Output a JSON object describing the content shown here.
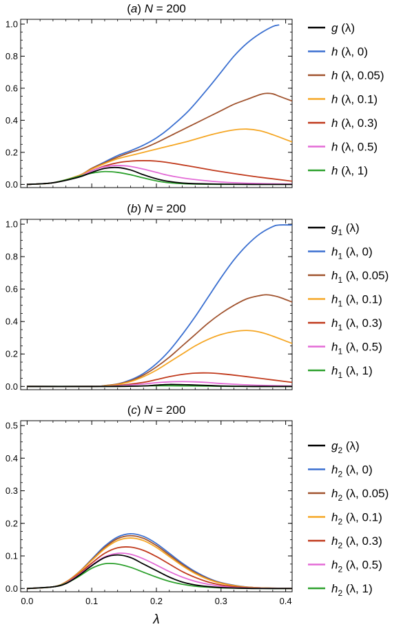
{
  "chart_data": [
    {
      "type": "line",
      "title": "(a) N = 200",
      "xlabel": "",
      "ylabel": "",
      "xlim": [
        -0.01,
        0.41
      ],
      "ylim": [
        -0.02,
        1.03
      ],
      "yticks": [
        "0.0",
        "0.2",
        "0.4",
        "0.6",
        "0.8",
        "1.0"
      ],
      "ytick_values": [
        0,
        0.2,
        0.4,
        0.6,
        0.8,
        1.0
      ],
      "legend_position": "right",
      "grid": false,
      "series": [
        {
          "name": "g (λ)",
          "color": "#000000",
          "x": [
            0,
            0.04,
            0.08,
            0.1,
            0.12,
            0.14,
            0.16,
            0.18,
            0.2,
            0.22,
            0.25,
            0.3,
            0.35,
            0.41
          ],
          "y": [
            0,
            0.01,
            0.045,
            0.075,
            0.1,
            0.105,
            0.09,
            0.06,
            0.035,
            0.018,
            0.006,
            0.002,
            0.0,
            0.0
          ]
        },
        {
          "name": "h (λ, 0)",
          "color": "#3a6fd0",
          "x": [
            0,
            0.04,
            0.08,
            0.1,
            0.12,
            0.14,
            0.16,
            0.18,
            0.2,
            0.22,
            0.25,
            0.28,
            0.3,
            0.32,
            0.34,
            0.36,
            0.38,
            0.39
          ],
          "y": [
            0,
            0.01,
            0.055,
            0.1,
            0.14,
            0.18,
            0.21,
            0.245,
            0.29,
            0.35,
            0.46,
            0.6,
            0.7,
            0.8,
            0.88,
            0.94,
            0.985,
            0.995
          ]
        },
        {
          "name": "h (λ, 0.05)",
          "color": "#a0522d",
          "x": [
            0,
            0.04,
            0.08,
            0.1,
            0.12,
            0.14,
            0.16,
            0.18,
            0.2,
            0.22,
            0.25,
            0.28,
            0.3,
            0.32,
            0.34,
            0.36,
            0.37,
            0.38,
            0.39,
            0.41
          ],
          "y": [
            0,
            0.01,
            0.055,
            0.1,
            0.135,
            0.17,
            0.2,
            0.225,
            0.26,
            0.3,
            0.36,
            0.42,
            0.46,
            0.5,
            0.53,
            0.56,
            0.568,
            0.565,
            0.55,
            0.52
          ]
        },
        {
          "name": "h (λ, 0.1)",
          "color": "#f5a623",
          "x": [
            0,
            0.04,
            0.08,
            0.1,
            0.12,
            0.14,
            0.16,
            0.18,
            0.2,
            0.22,
            0.25,
            0.28,
            0.3,
            0.32,
            0.34,
            0.36,
            0.38,
            0.4,
            0.41
          ],
          "y": [
            0,
            0.01,
            0.055,
            0.095,
            0.13,
            0.16,
            0.18,
            0.2,
            0.22,
            0.24,
            0.27,
            0.305,
            0.325,
            0.34,
            0.345,
            0.335,
            0.31,
            0.28,
            0.265
          ]
        },
        {
          "name": "h (λ, 0.3)",
          "color": "#c0391b",
          "x": [
            0,
            0.04,
            0.08,
            0.1,
            0.12,
            0.14,
            0.16,
            0.18,
            0.2,
            0.22,
            0.25,
            0.3,
            0.35,
            0.41
          ],
          "y": [
            0,
            0.01,
            0.05,
            0.085,
            0.115,
            0.135,
            0.145,
            0.148,
            0.145,
            0.135,
            0.115,
            0.08,
            0.05,
            0.02
          ]
        },
        {
          "name": "h (λ, 0.5)",
          "color": "#e36ad6",
          "x": [
            0,
            0.04,
            0.08,
            0.1,
            0.12,
            0.14,
            0.16,
            0.18,
            0.2,
            0.22,
            0.25,
            0.3,
            0.35,
            0.41
          ],
          "y": [
            0,
            0.01,
            0.05,
            0.085,
            0.11,
            0.118,
            0.112,
            0.095,
            0.075,
            0.055,
            0.035,
            0.015,
            0.006,
            0.002
          ]
        },
        {
          "name": "h (λ, 1)",
          "color": "#2ca02c",
          "x": [
            0,
            0.04,
            0.08,
            0.1,
            0.12,
            0.14,
            0.16,
            0.18,
            0.2,
            0.22,
            0.25,
            0.3,
            0.35,
            0.41
          ],
          "y": [
            0,
            0.01,
            0.05,
            0.07,
            0.08,
            0.075,
            0.06,
            0.04,
            0.022,
            0.01,
            0.003,
            0.0,
            0.0,
            0.0
          ]
        }
      ]
    },
    {
      "type": "line",
      "title": "(b) N = 200",
      "xlabel": "",
      "ylabel": "",
      "xlim": [
        -0.01,
        0.41
      ],
      "ylim": [
        -0.02,
        1.03
      ],
      "yticks": [
        "0.0",
        "0.2",
        "0.4",
        "0.6",
        "0.8",
        "1.0"
      ],
      "ytick_values": [
        0,
        0.2,
        0.4,
        0.6,
        0.8,
        1.0
      ],
      "legend_position": "right",
      "grid": false,
      "series": [
        {
          "name": "g1 (λ)",
          "color": "#000000",
          "x": [
            0,
            0.1,
            0.14,
            0.18,
            0.2,
            0.22,
            0.25,
            0.28,
            0.3,
            0.35,
            0.41
          ],
          "y": [
            0,
            0,
            0.0,
            0.003,
            0.008,
            0.012,
            0.01,
            0.006,
            0.003,
            0.0,
            0.0
          ]
        },
        {
          "name": "h1 (λ, 0)",
          "color": "#3a6fd0",
          "x": [
            0,
            0.1,
            0.12,
            0.14,
            0.16,
            0.18,
            0.2,
            0.22,
            0.24,
            0.26,
            0.28,
            0.3,
            0.32,
            0.34,
            0.36,
            0.38,
            0.39,
            0.41
          ],
          "y": [
            0,
            0,
            0.005,
            0.015,
            0.04,
            0.08,
            0.14,
            0.22,
            0.32,
            0.43,
            0.55,
            0.67,
            0.78,
            0.87,
            0.94,
            0.985,
            0.995,
            0.995
          ]
        },
        {
          "name": "h1 (λ, 0.05)",
          "color": "#a0522d",
          "x": [
            0,
            0.1,
            0.12,
            0.14,
            0.16,
            0.18,
            0.2,
            0.22,
            0.24,
            0.26,
            0.28,
            0.3,
            0.32,
            0.34,
            0.36,
            0.37,
            0.38,
            0.39,
            0.41
          ],
          "y": [
            0,
            0,
            0.005,
            0.015,
            0.035,
            0.07,
            0.12,
            0.18,
            0.25,
            0.32,
            0.39,
            0.45,
            0.5,
            0.54,
            0.56,
            0.565,
            0.56,
            0.55,
            0.52
          ]
        },
        {
          "name": "h1 (λ, 0.1)",
          "color": "#f5a623",
          "x": [
            0,
            0.1,
            0.12,
            0.14,
            0.16,
            0.18,
            0.2,
            0.22,
            0.24,
            0.26,
            0.28,
            0.3,
            0.32,
            0.34,
            0.36,
            0.38,
            0.4,
            0.41
          ],
          "y": [
            0,
            0,
            0.004,
            0.012,
            0.03,
            0.06,
            0.1,
            0.15,
            0.2,
            0.25,
            0.29,
            0.32,
            0.338,
            0.345,
            0.335,
            0.31,
            0.28,
            0.265
          ]
        },
        {
          "name": "h1 (λ, 0.3)",
          "color": "#c0391b",
          "x": [
            0,
            0.1,
            0.14,
            0.18,
            0.2,
            0.22,
            0.24,
            0.26,
            0.28,
            0.3,
            0.33,
            0.36,
            0.41
          ],
          "y": [
            0,
            0,
            0.006,
            0.025,
            0.042,
            0.06,
            0.074,
            0.082,
            0.083,
            0.078,
            0.065,
            0.05,
            0.025
          ]
        },
        {
          "name": "h1 (λ, 0.5)",
          "color": "#e36ad6",
          "x": [
            0,
            0.1,
            0.14,
            0.18,
            0.2,
            0.22,
            0.24,
            0.26,
            0.28,
            0.3,
            0.35,
            0.41
          ],
          "y": [
            0,
            0,
            0.004,
            0.015,
            0.023,
            0.028,
            0.03,
            0.028,
            0.024,
            0.018,
            0.008,
            0.003
          ]
        },
        {
          "name": "h1 (λ, 1)",
          "color": "#2ca02c",
          "x": [
            0,
            0.1,
            0.14,
            0.18,
            0.2,
            0.22,
            0.25,
            0.3,
            0.35,
            0.41
          ],
          "y": [
            0,
            0,
            0.001,
            0.003,
            0.004,
            0.004,
            0.003,
            0.001,
            0.0,
            0.0
          ]
        }
      ]
    },
    {
      "type": "line",
      "title": "(c) N = 200",
      "xlabel": "λ",
      "ylabel": "",
      "xlim": [
        -0.01,
        0.41
      ],
      "ylim": [
        -0.01,
        0.515
      ],
      "yticks": [
        "0.0",
        "0.1",
        "0.2",
        "0.3",
        "0.4",
        "0.5"
      ],
      "ytick_values": [
        0,
        0.1,
        0.2,
        0.3,
        0.4,
        0.5
      ],
      "xticks": [
        "0.0",
        "0.1",
        "0.2",
        "0.3",
        "0.4"
      ],
      "xtick_values": [
        0,
        0.1,
        0.2,
        0.3,
        0.4
      ],
      "legend_position": "right",
      "grid": false,
      "series": [
        {
          "name": "g2 (λ)",
          "color": "#000000",
          "x": [
            0,
            0.04,
            0.06,
            0.08,
            0.1,
            0.12,
            0.14,
            0.16,
            0.18,
            0.2,
            0.22,
            0.24,
            0.26,
            0.28,
            0.3,
            0.33,
            0.36,
            0.41
          ],
          "y": [
            0,
            0.005,
            0.015,
            0.04,
            0.07,
            0.095,
            0.103,
            0.095,
            0.075,
            0.055,
            0.035,
            0.02,
            0.011,
            0.006,
            0.003,
            0.001,
            0.0,
            0.0
          ]
        },
        {
          "name": "h2 (λ, 0)",
          "color": "#3a6fd0",
          "x": [
            0,
            0.04,
            0.06,
            0.08,
            0.1,
            0.12,
            0.14,
            0.16,
            0.18,
            0.2,
            0.22,
            0.24,
            0.26,
            0.28,
            0.3,
            0.33,
            0.36,
            0.41
          ],
          "y": [
            0,
            0.005,
            0.02,
            0.05,
            0.09,
            0.13,
            0.158,
            0.168,
            0.16,
            0.138,
            0.108,
            0.078,
            0.052,
            0.032,
            0.018,
            0.007,
            0.002,
            0.0
          ]
        },
        {
          "name": "h2 (λ, 0.05)",
          "color": "#a0522d",
          "x": [
            0,
            0.04,
            0.06,
            0.08,
            0.1,
            0.12,
            0.14,
            0.16,
            0.18,
            0.2,
            0.22,
            0.24,
            0.26,
            0.28,
            0.3,
            0.33,
            0.36,
            0.41
          ],
          "y": [
            0,
            0.005,
            0.02,
            0.05,
            0.088,
            0.126,
            0.153,
            0.162,
            0.154,
            0.132,
            0.103,
            0.074,
            0.049,
            0.03,
            0.017,
            0.006,
            0.002,
            0.0
          ]
        },
        {
          "name": "h2 (λ, 0.1)",
          "color": "#f5a623",
          "x": [
            0,
            0.04,
            0.06,
            0.08,
            0.1,
            0.12,
            0.14,
            0.16,
            0.18,
            0.2,
            0.22,
            0.24,
            0.26,
            0.28,
            0.3,
            0.33,
            0.36,
            0.41
          ],
          "y": [
            0,
            0.005,
            0.02,
            0.049,
            0.086,
            0.122,
            0.147,
            0.155,
            0.147,
            0.126,
            0.098,
            0.07,
            0.046,
            0.028,
            0.016,
            0.006,
            0.002,
            0.0
          ]
        },
        {
          "name": "h2 (λ, 0.3)",
          "color": "#c0391b",
          "x": [
            0,
            0.04,
            0.06,
            0.08,
            0.1,
            0.12,
            0.14,
            0.16,
            0.18,
            0.2,
            0.22,
            0.24,
            0.26,
            0.28,
            0.3,
            0.33,
            0.36,
            0.41
          ],
          "y": [
            0,
            0.005,
            0.018,
            0.045,
            0.078,
            0.108,
            0.125,
            0.127,
            0.117,
            0.098,
            0.075,
            0.052,
            0.034,
            0.02,
            0.011,
            0.004,
            0.001,
            0.0
          ]
        },
        {
          "name": "h2 (λ, 0.5)",
          "color": "#e36ad6",
          "x": [
            0,
            0.04,
            0.06,
            0.08,
            0.1,
            0.12,
            0.14,
            0.16,
            0.18,
            0.2,
            0.22,
            0.24,
            0.26,
            0.28,
            0.3,
            0.33,
            0.36,
            0.41
          ],
          "y": [
            0,
            0.005,
            0.017,
            0.042,
            0.072,
            0.097,
            0.108,
            0.105,
            0.091,
            0.072,
            0.052,
            0.035,
            0.022,
            0.013,
            0.007,
            0.002,
            0.001,
            0.0
          ]
        },
        {
          "name": "h2 (λ, 1)",
          "color": "#2ca02c",
          "x": [
            0,
            0.04,
            0.06,
            0.08,
            0.1,
            0.12,
            0.14,
            0.16,
            0.18,
            0.2,
            0.22,
            0.24,
            0.26,
            0.28,
            0.3,
            0.33,
            0.36,
            0.41
          ],
          "y": [
            0,
            0.005,
            0.016,
            0.037,
            0.062,
            0.076,
            0.075,
            0.065,
            0.05,
            0.035,
            0.022,
            0.013,
            0.007,
            0.004,
            0.002,
            0.001,
            0.0,
            0.0
          ]
        }
      ]
    }
  ]
}
